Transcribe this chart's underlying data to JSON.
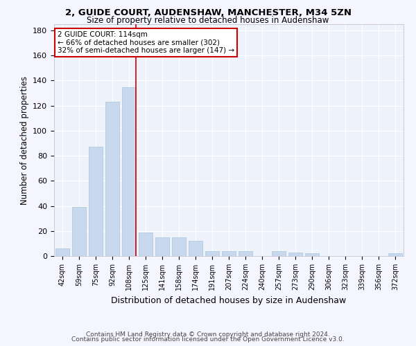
{
  "title1": "2, GUIDE COURT, AUDENSHAW, MANCHESTER, M34 5ZN",
  "title2": "Size of property relative to detached houses in Audenshaw",
  "xlabel": "Distribution of detached houses by size in Audenshaw",
  "ylabel": "Number of detached properties",
  "bar_color": "#c8d9ed",
  "bar_edge_color": "#a8c4de",
  "categories": [
    "42sqm",
    "59sqm",
    "75sqm",
    "92sqm",
    "108sqm",
    "125sqm",
    "141sqm",
    "158sqm",
    "174sqm",
    "191sqm",
    "207sqm",
    "224sqm",
    "240sqm",
    "257sqm",
    "273sqm",
    "290sqm",
    "306sqm",
    "323sqm",
    "339sqm",
    "356sqm",
    "372sqm"
  ],
  "values": [
    6,
    39,
    87,
    123,
    135,
    19,
    15,
    15,
    12,
    4,
    4,
    4,
    0,
    4,
    3,
    2,
    0,
    0,
    0,
    0,
    2
  ],
  "ylim": [
    0,
    185
  ],
  "yticks": [
    0,
    20,
    40,
    60,
    80,
    100,
    120,
    140,
    160,
    180
  ],
  "vline_x_idx": 4,
  "vline_color": "#cc0000",
  "annotation_text": "2 GUIDE COURT: 114sqm\n← 66% of detached houses are smaller (302)\n32% of semi-detached houses are larger (147) →",
  "annotation_box_color": "#ffffff",
  "annotation_box_edge": "#cc0000",
  "background_color": "#eef2fa",
  "grid_color": "#ffffff",
  "footer1": "Contains HM Land Registry data © Crown copyright and database right 2024.",
  "footer2": "Contains public sector information licensed under the Open Government Licence v3.0."
}
